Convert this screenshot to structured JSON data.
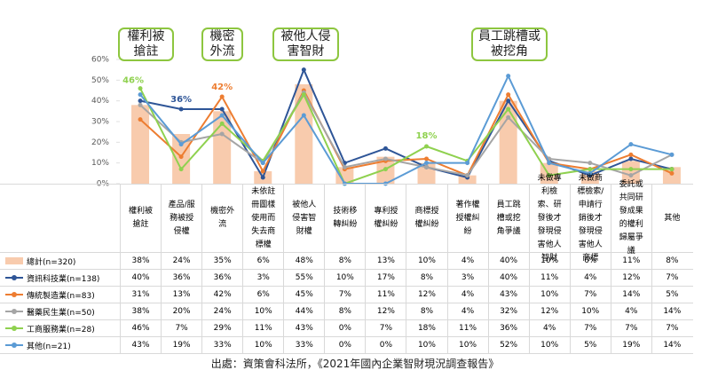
{
  "chart_data": {
    "type": "bar",
    "categories": [
      "權利被搶註",
      "產品/服務被授侵權",
      "機密外流",
      "未依註冊圖樣使用而失去商標權",
      "被他人侵害智財權",
      "技術移轉糾紛",
      "專利授權糾紛",
      "商標授權糾紛",
      "著作權授權糾紛",
      "員工跳槽或挖角爭議",
      "未做專利檢索、研發後才發現侵害他人智財",
      "未做商標檢索/申請行銷後才發現侵害他人商標",
      "委託或共同研發成果的權利歸屬爭議",
      "其他"
    ],
    "ylim": [
      0,
      60
    ],
    "yticks": [
      {
        "value": 0,
        "label": "0%"
      },
      {
        "value": 10,
        "label": "10%"
      },
      {
        "value": 20,
        "label": "20%"
      },
      {
        "value": 30,
        "label": "30%"
      },
      {
        "value": 40,
        "label": "40%"
      },
      {
        "value": 50,
        "label": "50%"
      },
      {
        "value": 60,
        "label": "60%"
      }
    ],
    "grid": false,
    "series": [
      {
        "name": "總計(n=320)",
        "type": "bar",
        "color": "#f8cbad",
        "values": [
          38,
          24,
          35,
          6,
          48,
          8,
          13,
          10,
          4,
          40,
          10,
          6,
          11,
          8
        ],
        "value_labels": [
          "38%",
          "24%",
          "35%",
          "6%",
          "48%",
          "8%",
          "13%",
          "10%",
          "4%",
          "40%",
          "10%",
          "6%",
          "11%",
          "8%"
        ]
      },
      {
        "name": "資訊科技業(n=138)",
        "type": "line",
        "color": "#2e5597",
        "values": [
          40,
          36,
          36,
          3,
          55,
          10,
          17,
          8,
          3,
          40,
          11,
          4,
          12,
          7
        ],
        "value_labels": [
          "40%",
          "36%",
          "36%",
          "3%",
          "55%",
          "10%",
          "17%",
          "8%",
          "3%",
          "40%",
          "11%",
          "4%",
          "12%",
          "7%"
        ]
      },
      {
        "name": "傳統製造業(n=83)",
        "type": "line",
        "color": "#ed7d31",
        "values": [
          31,
          13,
          42,
          6,
          45,
          7,
          11,
          12,
          4,
          43,
          10,
          7,
          14,
          5
        ],
        "value_labels": [
          "31%",
          "13%",
          "42%",
          "6%",
          "45%",
          "7%",
          "11%",
          "12%",
          "4%",
          "43%",
          "10%",
          "7%",
          "14%",
          "5%"
        ]
      },
      {
        "name": "醫藥民生業(n=50)",
        "type": "line",
        "color": "#a5a5a5",
        "values": [
          38,
          20,
          24,
          10,
          44,
          8,
          12,
          8,
          4,
          32,
          12,
          10,
          4,
          14
        ],
        "value_labels": [
          "38%",
          "20%",
          "24%",
          "10%",
          "44%",
          "8%",
          "12%",
          "8%",
          "4%",
          "32%",
          "12%",
          "10%",
          "4%",
          "14%"
        ]
      },
      {
        "name": "工商服務業(n=28)",
        "type": "line",
        "color": "#8fd14f",
        "values": [
          46,
          7,
          29,
          11,
          43,
          0,
          7,
          18,
          11,
          36,
          4,
          7,
          7,
          7
        ],
        "value_labels": [
          "46%",
          "7%",
          "29%",
          "11%",
          "43%",
          "0%",
          "7%",
          "18%",
          "11%",
          "36%",
          "4%",
          "7%",
          "7%",
          "7%"
        ]
      },
      {
        "name": "其他(n=21)",
        "type": "line",
        "color": "#5b9bd5",
        "values": [
          43,
          19,
          33,
          10,
          33,
          0,
          0,
          10,
          10,
          52,
          10,
          5,
          19,
          14
        ],
        "value_labels": [
          "43%",
          "19%",
          "33%",
          "10%",
          "33%",
          "0%",
          "0%",
          "10%",
          "10%",
          "52%",
          "10%",
          "5%",
          "19%",
          "14%"
        ]
      }
    ],
    "callouts": [
      "權利被搶註",
      "機密外流",
      "被他人侵害智財",
      "員工跳槽或被挖角"
    ],
    "source": "出處：資策會科法所，《2021年國內企業智財現況調查報告》"
  }
}
